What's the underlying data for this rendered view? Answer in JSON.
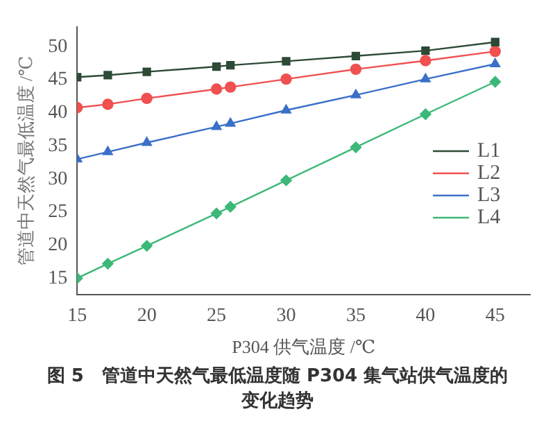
{
  "chart_data": {
    "type": "line",
    "title": "图 5　管道中天然气最低温度随 P304 集气站供气温度的变化趋势",
    "xlabel": "P304 供气温度 /℃",
    "ylabel": "管道中天然气最低温度 /℃",
    "x": [
      15,
      17.2,
      20,
      25,
      26,
      30,
      35,
      40,
      45
    ],
    "series": [
      {
        "name": "L1",
        "color": "#2d4a36",
        "marker": "square",
        "values": [
          45.4,
          45.7,
          46.2,
          47.0,
          47.2,
          47.8,
          48.6,
          49.4,
          50.7
        ]
      },
      {
        "name": "L2",
        "color": "#f05050",
        "marker": "circle",
        "values": [
          40.8,
          41.3,
          42.2,
          43.6,
          43.9,
          45.1,
          46.6,
          47.9,
          49.3
        ]
      },
      {
        "name": "L3",
        "color": "#3a70c8",
        "marker": "triangle",
        "values": [
          33.0,
          34.1,
          35.5,
          37.9,
          38.4,
          40.4,
          42.7,
          45.1,
          47.4
        ]
      },
      {
        "name": "L4",
        "color": "#3cb878",
        "marker": "diamond",
        "values": [
          15.0,
          17.2,
          19.9,
          24.8,
          25.8,
          29.8,
          34.8,
          39.8,
          44.7
        ]
      }
    ],
    "xlim": [
      15,
      47.5
    ],
    "xticks": [
      15,
      20,
      25,
      30,
      35,
      40,
      45
    ],
    "ylim": [
      12.5,
      53
    ],
    "yticks": [
      15,
      20,
      25,
      30,
      35,
      40,
      45,
      50
    ],
    "grid": false,
    "legend": "right"
  }
}
